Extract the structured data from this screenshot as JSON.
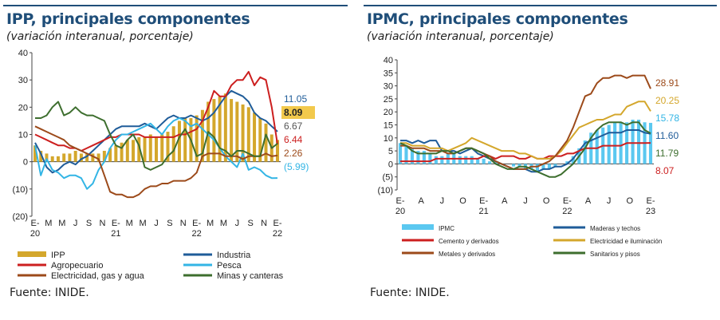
{
  "colors": {
    "title": "#1f4e79",
    "gold": "#d4a72c",
    "navy": "#1f5c99",
    "red": "#cc1f1f",
    "cyan": "#33b5e5",
    "brown": "#9c4a1a",
    "green": "#3d6e2e",
    "gray": "#555555"
  },
  "left": {
    "title": "IPP, principales componentes",
    "subtitle": "(variación interanual, porcentaje)",
    "source": "Fuente: INIDE."
  },
  "right": {
    "title": "IPMC, principales componentes",
    "subtitle": "(variación interanual, porcentaje)",
    "source": "Fuente: INIDE."
  },
  "chart_data": [
    {
      "type": "bar+line",
      "ylim": [
        -20,
        40
      ],
      "y_ticks": [
        "40",
        "30",
        "20",
        "10",
        "0",
        "(10)",
        "(20)"
      ],
      "x_tick_labels": [
        "E-\n20",
        "M",
        "M",
        "J",
        "S",
        "N",
        "E-\n21",
        "M",
        "M",
        "J",
        "S",
        "N",
        "E-\n22",
        "M",
        "M",
        "J",
        "S",
        "N",
        "E-\n22"
      ],
      "end_labels": [
        {
          "text": "11.05",
          "color": "#1f5c99"
        },
        {
          "text": "8.09",
          "color": "#222222",
          "highlight": "#f2c94c"
        },
        {
          "text": "6.67",
          "color": "#555555"
        },
        {
          "text": "6.44",
          "color": "#cc1f1f"
        },
        {
          "text": "2.26",
          "color": "#9c4a1a"
        },
        {
          "text": "(5.99)",
          "color": "#33b5e5"
        }
      ],
      "legend": [
        {
          "label": "IPP",
          "kind": "bar",
          "color": "#d4a72c"
        },
        {
          "label": "Industria",
          "kind": "line",
          "color": "#1f5c99"
        },
        {
          "label": "Agropecuario",
          "kind": "line",
          "color": "#cc1f1f"
        },
        {
          "label": "Pesca",
          "kind": "line",
          "color": "#33b5e5"
        },
        {
          "label": "Electricidad, gas y agua",
          "kind": "line",
          "color": "#9c4a1a"
        },
        {
          "label": "Minas y canteras",
          "kind": "line",
          "color": "#3d6e2e"
        }
      ],
      "bars": {
        "name": "IPP",
        "color": "#d4a72c",
        "values": [
          6,
          4,
          3,
          2,
          2,
          3,
          3,
          4,
          3,
          3,
          3,
          3,
          4,
          5,
          6,
          7,
          8,
          8,
          9,
          9,
          10,
          9,
          10,
          11,
          13,
          15,
          16,
          16,
          17,
          19,
          22,
          23,
          24,
          25,
          23,
          22,
          21,
          20,
          18,
          16,
          14,
          10,
          8
        ]
      },
      "series": [
        {
          "name": "Industria",
          "color": "#1f5c99",
          "values": [
            7,
            3,
            -2,
            -4,
            -3,
            -1,
            0,
            -1,
            1,
            2,
            4,
            6,
            8,
            10,
            12,
            13,
            13,
            13,
            13,
            14,
            13,
            12,
            14,
            16,
            17,
            16,
            16,
            17,
            16,
            15,
            16,
            18,
            21,
            24,
            26,
            25,
            24,
            22,
            18,
            16,
            15,
            13,
            11.05
          ]
        },
        {
          "name": "Agropecuario",
          "color": "#cc1f1f",
          "values": [
            10,
            9,
            8,
            7,
            6,
            6,
            5,
            5,
            4,
            5,
            6,
            7,
            8,
            9,
            9,
            10,
            10,
            10,
            10,
            9,
            9,
            9,
            9,
            9,
            9,
            10,
            10,
            11,
            12,
            15,
            20,
            26,
            24,
            24,
            28,
            30,
            30,
            33,
            28,
            31,
            30,
            20,
            6.44
          ]
        },
        {
          "name": "Pesca",
          "color": "#33b5e5",
          "values": [
            6,
            -5,
            1,
            -3,
            -4,
            -6,
            -5,
            -5,
            -6,
            -10,
            -8,
            -3,
            0,
            5,
            8,
            10,
            10,
            11,
            12,
            13,
            14,
            12,
            10,
            13,
            15,
            16,
            15,
            13,
            14,
            12,
            10,
            8,
            5,
            2,
            0,
            -2,
            3,
            -3,
            -2,
            -3,
            -5,
            -6,
            -5.99
          ]
        },
        {
          "name": "Electricidad, gas y agua",
          "color": "#9c4a1a",
          "values": [
            13,
            12,
            11,
            10,
            9,
            8,
            6,
            5,
            4,
            3,
            2,
            1,
            -5,
            -11,
            -12,
            -12,
            -13,
            -13,
            -12,
            -10,
            -9,
            -9,
            -8,
            -8,
            -7,
            -7,
            -7,
            -6,
            -4,
            2,
            3,
            3,
            3,
            2,
            2,
            2,
            1,
            2,
            2,
            2,
            3,
            2,
            2.26
          ]
        },
        {
          "name": "Minas y canteras",
          "color": "#3d6e2e",
          "values": [
            16,
            16,
            17,
            20,
            22,
            17,
            18,
            20,
            18,
            17,
            17,
            16,
            15,
            10,
            6,
            5,
            8,
            10,
            6,
            -2,
            -3,
            -2,
            -1,
            2,
            4,
            9,
            12,
            8,
            2,
            3,
            11,
            9,
            5,
            4,
            2,
            4,
            4,
            3,
            2,
            2,
            10,
            5,
            6.67
          ]
        }
      ]
    },
    {
      "type": "bar+line",
      "ylim": [
        -10,
        40
      ],
      "y_ticks": [
        "40",
        "35",
        "30",
        "25",
        "20",
        "15",
        "10",
        "5",
        "0",
        "(5)",
        "(10)"
      ],
      "x_tick_labels": [
        "E-\n20",
        "A",
        "J",
        "O",
        "E-\n21",
        "A",
        "J",
        "O",
        "E-\n22",
        "A",
        "J",
        "O",
        "E-\n23"
      ],
      "end_labels": [
        {
          "text": "28.91",
          "color": "#9c4a1a"
        },
        {
          "text": "20.25",
          "color": "#d4a72c"
        },
        {
          "text": "15.78",
          "color": "#33b5e5"
        },
        {
          "text": "11.60",
          "color": "#1f5c99"
        },
        {
          "text": "11.79",
          "color": "#3d6e2e"
        },
        {
          "text": "8.07",
          "color": "#cc1f1f"
        }
      ],
      "legend": [
        {
          "label": "IPMC",
          "kind": "bar",
          "color": "#5bc8f0"
        },
        {
          "label": "Maderas y techos",
          "kind": "line",
          "color": "#1f5c99"
        },
        {
          "label": "Cemento y derivados",
          "kind": "line",
          "color": "#cc1f1f"
        },
        {
          "label": "Electricidad e iluminación",
          "kind": "line",
          "color": "#d4a72c"
        },
        {
          "label": "Metales y derivados",
          "kind": "line",
          "color": "#9c4a1a"
        },
        {
          "label": "Sanitarios y pisos",
          "kind": "line",
          "color": "#3d6e2e"
        }
      ],
      "bars": {
        "name": "IPMC",
        "color": "#5bc8f0",
        "values": [
          8,
          7,
          6,
          5,
          5,
          4,
          3,
          3,
          4,
          4,
          3,
          3,
          3,
          2,
          2,
          1,
          1,
          0,
          0,
          -1,
          -1,
          -2,
          -2,
          -3,
          -2,
          -2,
          -1,
          0,
          1,
          3,
          6,
          9,
          12,
          13,
          14,
          15,
          16,
          16,
          16,
          17,
          17,
          16,
          15.78
        ]
      },
      "series": [
        {
          "name": "Maderas y techos",
          "color": "#1f5c99",
          "values": [
            9,
            9,
            8,
            9,
            8,
            9,
            9,
            5,
            5,
            5,
            4,
            5,
            6,
            4,
            3,
            2,
            1,
            0,
            -1,
            -2,
            -2,
            -2,
            -3,
            -3,
            -2,
            -2,
            -1,
            -1,
            0,
            2,
            5,
            8,
            9,
            10,
            11,
            12,
            12,
            12,
            13,
            13,
            13,
            12,
            11.6
          ]
        },
        {
          "name": "Cemento y derivados",
          "color": "#cc1f1f",
          "values": [
            1,
            1,
            1,
            1,
            1,
            1,
            2,
            2,
            2,
            2,
            2,
            2,
            2,
            2,
            3,
            3,
            2,
            3,
            3,
            3,
            2,
            2,
            3,
            2,
            2,
            3,
            3,
            3,
            4,
            4,
            5,
            6,
            6,
            6,
            7,
            7,
            7,
            7,
            8,
            8,
            8,
            8,
            8.07
          ]
        },
        {
          "name": "Electricidad e iluminación",
          "color": "#d4a72c",
          "values": [
            8,
            8,
            7,
            7,
            7,
            6,
            6,
            6,
            5,
            6,
            7,
            8,
            10,
            9,
            8,
            7,
            6,
            5,
            5,
            5,
            4,
            4,
            3,
            2,
            2,
            2,
            3,
            5,
            8,
            11,
            14,
            15,
            16,
            17,
            17,
            18,
            19,
            19,
            22,
            23,
            24,
            24,
            20.25
          ]
        },
        {
          "name": "Metales y derivados",
          "color": "#9c4a1a",
          "values": [
            7,
            7,
            6,
            6,
            6,
            5,
            5,
            5,
            4,
            4,
            5,
            6,
            6,
            5,
            4,
            3,
            1,
            0,
            -1,
            -2,
            -2,
            -2,
            -1,
            -1,
            0,
            1,
            3,
            6,
            9,
            14,
            20,
            26,
            27,
            31,
            33,
            33,
            34,
            34,
            33,
            34,
            34,
            34,
            28.91
          ]
        },
        {
          "name": "Sanitarios y pisos",
          "color": "#3d6e2e",
          "values": [
            8,
            7,
            5,
            4,
            4,
            4,
            4,
            5,
            5,
            4,
            5,
            6,
            6,
            5,
            4,
            2,
            0,
            -1,
            -2,
            -2,
            -1,
            -1,
            -2,
            -3,
            -4,
            -5,
            -5,
            -4,
            -2,
            0,
            3,
            6,
            10,
            13,
            15,
            16,
            16,
            16,
            15,
            16,
            16,
            13,
            11.79
          ]
        }
      ]
    }
  ]
}
